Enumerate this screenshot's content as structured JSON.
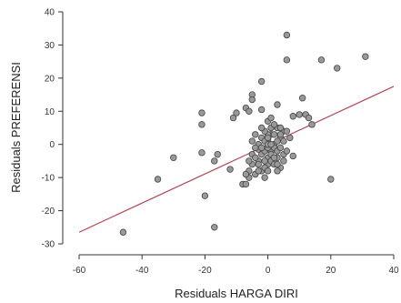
{
  "chart_data": {
    "type": "scatter",
    "title": "",
    "xlabel": "Residuals HARGA DIRI",
    "ylabel": "Residuals PREFERENSI",
    "xlim": [
      -60,
      40
    ],
    "ylim": [
      -30,
      40
    ],
    "xticks": [
      -60,
      -40,
      -20,
      0,
      20,
      40
    ],
    "yticks": [
      -30,
      -20,
      -10,
      0,
      10,
      20,
      30,
      40
    ],
    "grid": false,
    "legend": "none",
    "point_color": "#999999",
    "point_edge_color": "#444444",
    "line_color": "#b3485a",
    "regression_line": {
      "x": [
        -60,
        40
      ],
      "y": [
        -26.5,
        17.5
      ]
    },
    "points": [
      [
        -46,
        -26.5
      ],
      [
        -35,
        -10.5
      ],
      [
        -30,
        -4
      ],
      [
        -21,
        9.5
      ],
      [
        -21,
        6
      ],
      [
        -21,
        -2.5
      ],
      [
        -20,
        -15.5
      ],
      [
        -17,
        -25
      ],
      [
        -17,
        -5
      ],
      [
        -16,
        -3
      ],
      [
        -12,
        -7.5
      ],
      [
        -11,
        8
      ],
      [
        -10,
        9.5
      ],
      [
        -7,
        11
      ],
      [
        -6,
        10
      ],
      [
        -5,
        15
      ],
      [
        -5,
        13.5
      ],
      [
        -5,
        -3
      ],
      [
        -4,
        -9
      ],
      [
        -4,
        3
      ],
      [
        -3,
        -5
      ],
      [
        -3,
        -1.5
      ],
      [
        -2,
        19
      ],
      [
        -2,
        -8
      ],
      [
        -2,
        10.5
      ],
      [
        0,
        -4
      ],
      [
        0,
        1.5
      ],
      [
        0,
        -6
      ],
      [
        1,
        -2
      ],
      [
        1,
        3
      ],
      [
        2,
        0
      ],
      [
        2,
        -1
      ],
      [
        3,
        12
      ],
      [
        3,
        5
      ],
      [
        4,
        -7
      ],
      [
        4,
        2
      ],
      [
        5,
        4
      ],
      [
        5,
        -3
      ],
      [
        6,
        25.5
      ],
      [
        6,
        33
      ],
      [
        7,
        2
      ],
      [
        8,
        -3.5
      ],
      [
        8,
        8.5
      ],
      [
        10,
        9
      ],
      [
        11,
        14
      ],
      [
        12,
        9
      ],
      [
        13,
        8
      ],
      [
        14,
        6
      ],
      [
        17,
        25.5
      ],
      [
        20,
        -10.5
      ],
      [
        22,
        23
      ],
      [
        31,
        26.5
      ],
      [
        -8,
        -12
      ],
      [
        -7,
        -12
      ],
      [
        -6,
        -10
      ],
      [
        -6,
        -8
      ],
      [
        -5,
        -6
      ],
      [
        -4,
        -4
      ],
      [
        -3,
        -6
      ],
      [
        -3,
        0
      ],
      [
        -2,
        -3
      ],
      [
        -2,
        2
      ],
      [
        -1,
        -7
      ],
      [
        -1,
        -2
      ],
      [
        -1,
        1
      ],
      [
        0,
        -1
      ],
      [
        0,
        3
      ],
      [
        0,
        0
      ],
      [
        1,
        -5
      ],
      [
        1,
        0
      ],
      [
        1,
        5
      ],
      [
        2,
        -6
      ],
      [
        2,
        3
      ],
      [
        2,
        6
      ],
      [
        3,
        -2
      ],
      [
        3,
        1
      ],
      [
        3,
        -4
      ],
      [
        4,
        -1
      ],
      [
        4,
        5
      ],
      [
        5,
        1
      ],
      [
        -1,
        4
      ],
      [
        -2,
        -1
      ],
      [
        -3,
        -8
      ],
      [
        6,
        -2
      ],
      [
        1,
        -3
      ],
      [
        -4,
        -1
      ],
      [
        0,
        -8
      ],
      [
        -6,
        -5
      ],
      [
        -7,
        -9
      ],
      [
        3,
        -8
      ],
      [
        5,
        -5
      ],
      [
        2,
        -4
      ],
      [
        -1,
        -10
      ],
      [
        0,
        7
      ],
      [
        1,
        8
      ],
      [
        4,
        3
      ],
      [
        -2,
        5
      ],
      [
        -5,
        1
      ],
      [
        3,
        -6
      ],
      [
        6,
        4
      ],
      [
        -1,
        -5
      ],
      [
        0,
        2
      ]
    ]
  }
}
